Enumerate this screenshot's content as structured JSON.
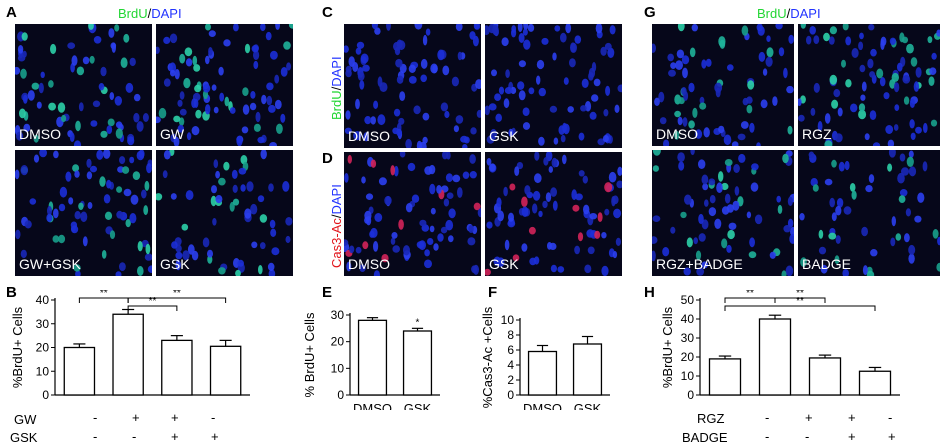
{
  "panels": {
    "A": {
      "letter": "A",
      "stain": {
        "a": "BrdU",
        "sep": "/",
        "b": "DAPI"
      },
      "images": [
        "DMSO",
        "GW",
        "GW+GSK",
        "GSK"
      ]
    },
    "C": {
      "letter": "C",
      "stain": {
        "a": "BrdU",
        "sep": "/",
        "b": "DAPI"
      },
      "images": [
        "DMSO",
        "GSK"
      ]
    },
    "D": {
      "letter": "D",
      "stain": {
        "a": "Cas3-Ac",
        "sep": "/",
        "b": "DAPI"
      },
      "images": [
        "DMSO",
        "GSK"
      ]
    },
    "G": {
      "letter": "G",
      "stain": {
        "a": "BrdU",
        "sep": "/",
        "b": "DAPI"
      },
      "images": [
        "DMSO",
        "RGZ",
        "RGZ+BADGE",
        "BADGE"
      ]
    },
    "B": {
      "letter": "B"
    },
    "E": {
      "letter": "E"
    },
    "F": {
      "letter": "F"
    },
    "H": {
      "letter": "H"
    }
  },
  "conditions": {
    "B": {
      "rows": [
        {
          "name": "GW",
          "marks": [
            "-",
            "+",
            "+",
            "-"
          ]
        },
        {
          "name": "GSK",
          "marks": [
            "-",
            "-",
            "+",
            "+"
          ]
        }
      ]
    },
    "H": {
      "rows": [
        {
          "name": "RGZ",
          "marks": [
            "-",
            "+",
            "+",
            "-"
          ]
        },
        {
          "name": "BADGE",
          "marks": [
            "-",
            "-",
            "+",
            "+"
          ]
        }
      ]
    }
  },
  "chart_data": [
    {
      "id": "B",
      "type": "bar",
      "ylabel": "%BrdU+ Cells",
      "ylim": [
        0,
        40
      ],
      "yticks": [
        0,
        10,
        20,
        30,
        40
      ],
      "categories": [
        "",
        "",
        "",
        ""
      ],
      "values": [
        20,
        34,
        23,
        20.5
      ],
      "errors": [
        1.5,
        2,
        2,
        2.5
      ],
      "brackets": [
        {
          "from": 0,
          "to": 1,
          "label": "**",
          "level": 0
        },
        {
          "from": 1,
          "to": 2,
          "label": "**",
          "level": 1
        },
        {
          "from": 1,
          "to": 3,
          "label": "**",
          "level": 0
        }
      ]
    },
    {
      "id": "E",
      "type": "bar",
      "ylabel": "% BrdU+ Cells",
      "ylim": [
        0,
        30
      ],
      "yticks": [
        0,
        10,
        20,
        30
      ],
      "categories": [
        "DMSO",
        "GSK"
      ],
      "values": [
        28,
        24
      ],
      "errors": [
        1,
        1
      ],
      "annotations": [
        {
          "bar": 1,
          "label": "*"
        }
      ]
    },
    {
      "id": "F",
      "type": "bar",
      "ylabel": "%Cas3-Ac +Cells",
      "ylim": [
        0,
        10
      ],
      "yticks": [
        0,
        2,
        4,
        6,
        8,
        10
      ],
      "categories": [
        "DMSO",
        "GSK"
      ],
      "values": [
        5.8,
        6.8
      ],
      "errors": [
        0.8,
        1
      ]
    },
    {
      "id": "H",
      "type": "bar",
      "ylabel": "%BrdU+ Cells",
      "ylim": [
        0,
        50
      ],
      "yticks": [
        0,
        10,
        20,
        30,
        40,
        50
      ],
      "categories": [
        "",
        "",
        "",
        ""
      ],
      "values": [
        19,
        40,
        19.5,
        12.5
      ],
      "errors": [
        1.5,
        2,
        1.5,
        2
      ],
      "brackets": [
        {
          "from": 0,
          "to": 1,
          "label": "**",
          "level": 0
        },
        {
          "from": 1,
          "to": 2,
          "label": "**",
          "level": 0
        },
        {
          "from": 0,
          "to": 3,
          "label": "**",
          "level": 1
        }
      ]
    }
  ]
}
